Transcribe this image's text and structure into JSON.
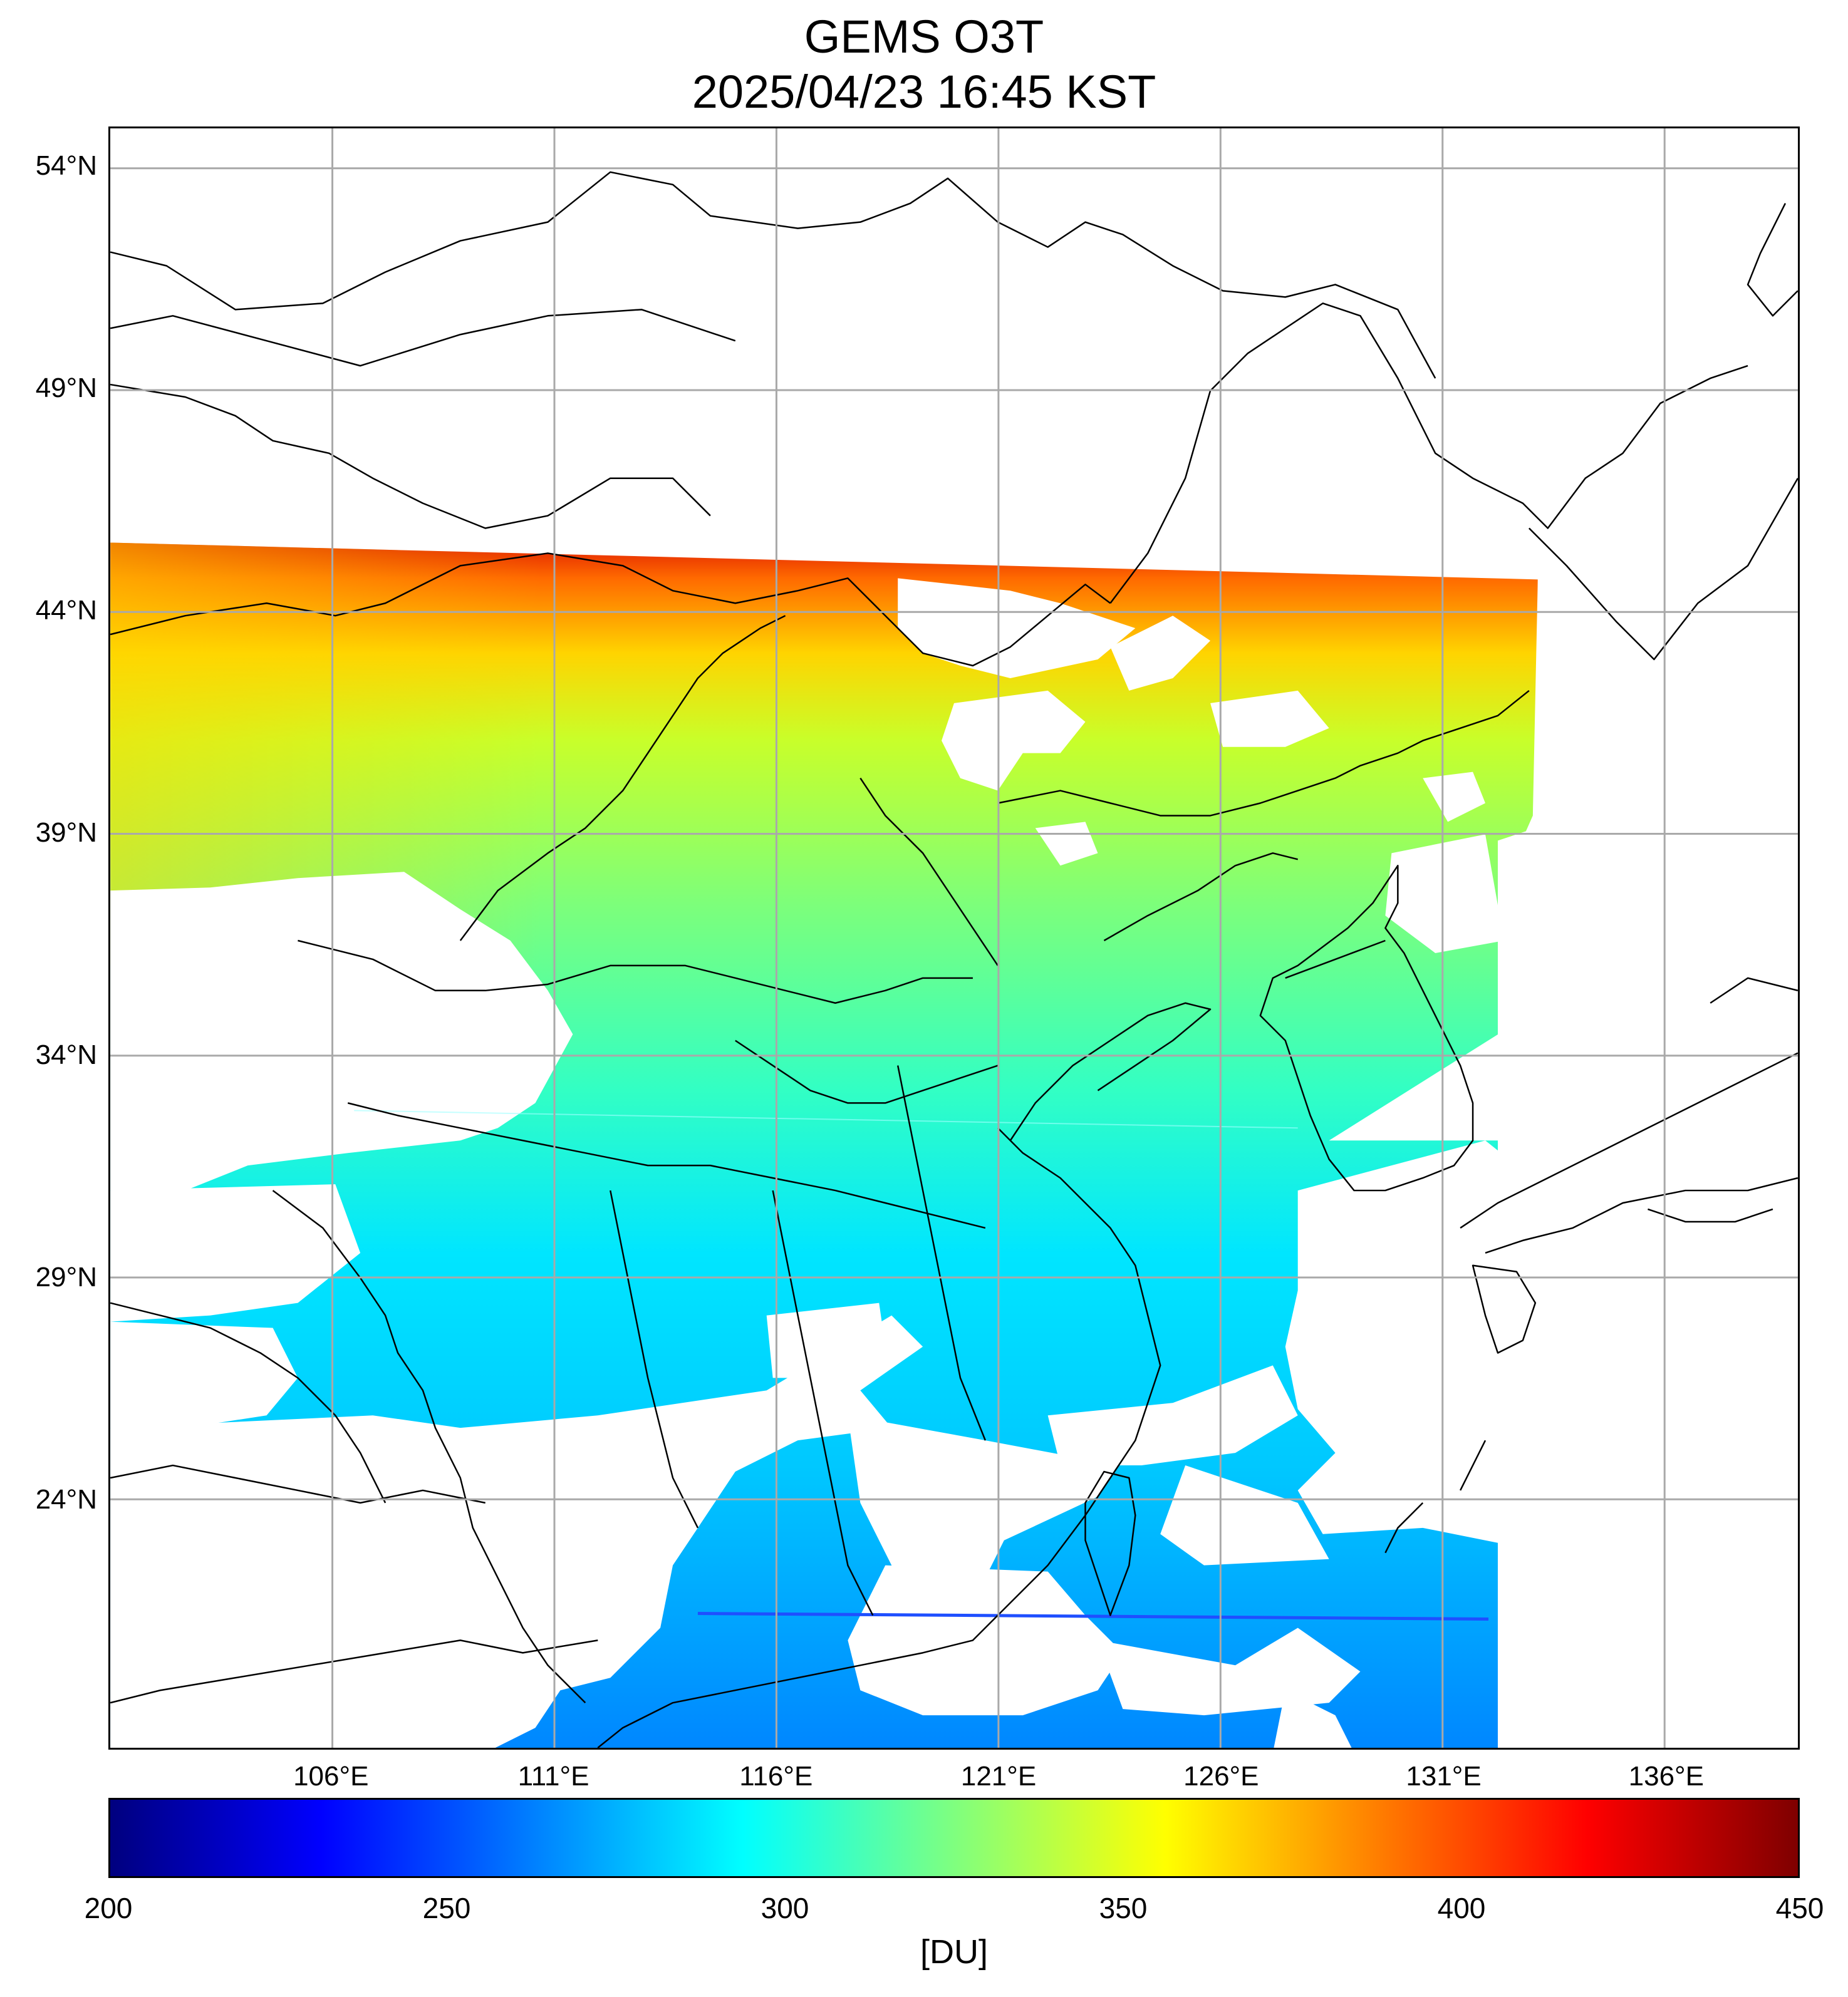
{
  "title": "GEMS O3T",
  "subtitle": "2025/04/23 16:45 KST",
  "map": {
    "lon_range": [
      101,
      139
    ],
    "lat_range": [
      18.4,
      54.9
    ],
    "lat_labels": [
      "54°N",
      "49°N",
      "44°N",
      "39°N",
      "34°N",
      "29°N",
      "24°N"
    ],
    "lat_values": [
      54,
      49,
      44,
      39,
      34,
      29,
      24
    ],
    "lon_labels": [
      "106°E",
      "111°E",
      "116°E",
      "121°E",
      "126°E",
      "131°E",
      "136°E"
    ],
    "lon_values": [
      106,
      111,
      116,
      121,
      126,
      131,
      136
    ],
    "grid": true
  },
  "colorbar": {
    "colormap": "jet",
    "min": 200,
    "max": 450,
    "ticks": [
      "200",
      "250",
      "300",
      "350",
      "400",
      "450"
    ],
    "tick_values": [
      200,
      250,
      300,
      350,
      400,
      450
    ],
    "units": "[DU]",
    "colors": [
      "#00007f",
      "#0000ff",
      "#007fff",
      "#00ffff",
      "#7fff7f",
      "#ffff00",
      "#ff7f00",
      "#ff0000",
      "#7f0000"
    ]
  }
}
